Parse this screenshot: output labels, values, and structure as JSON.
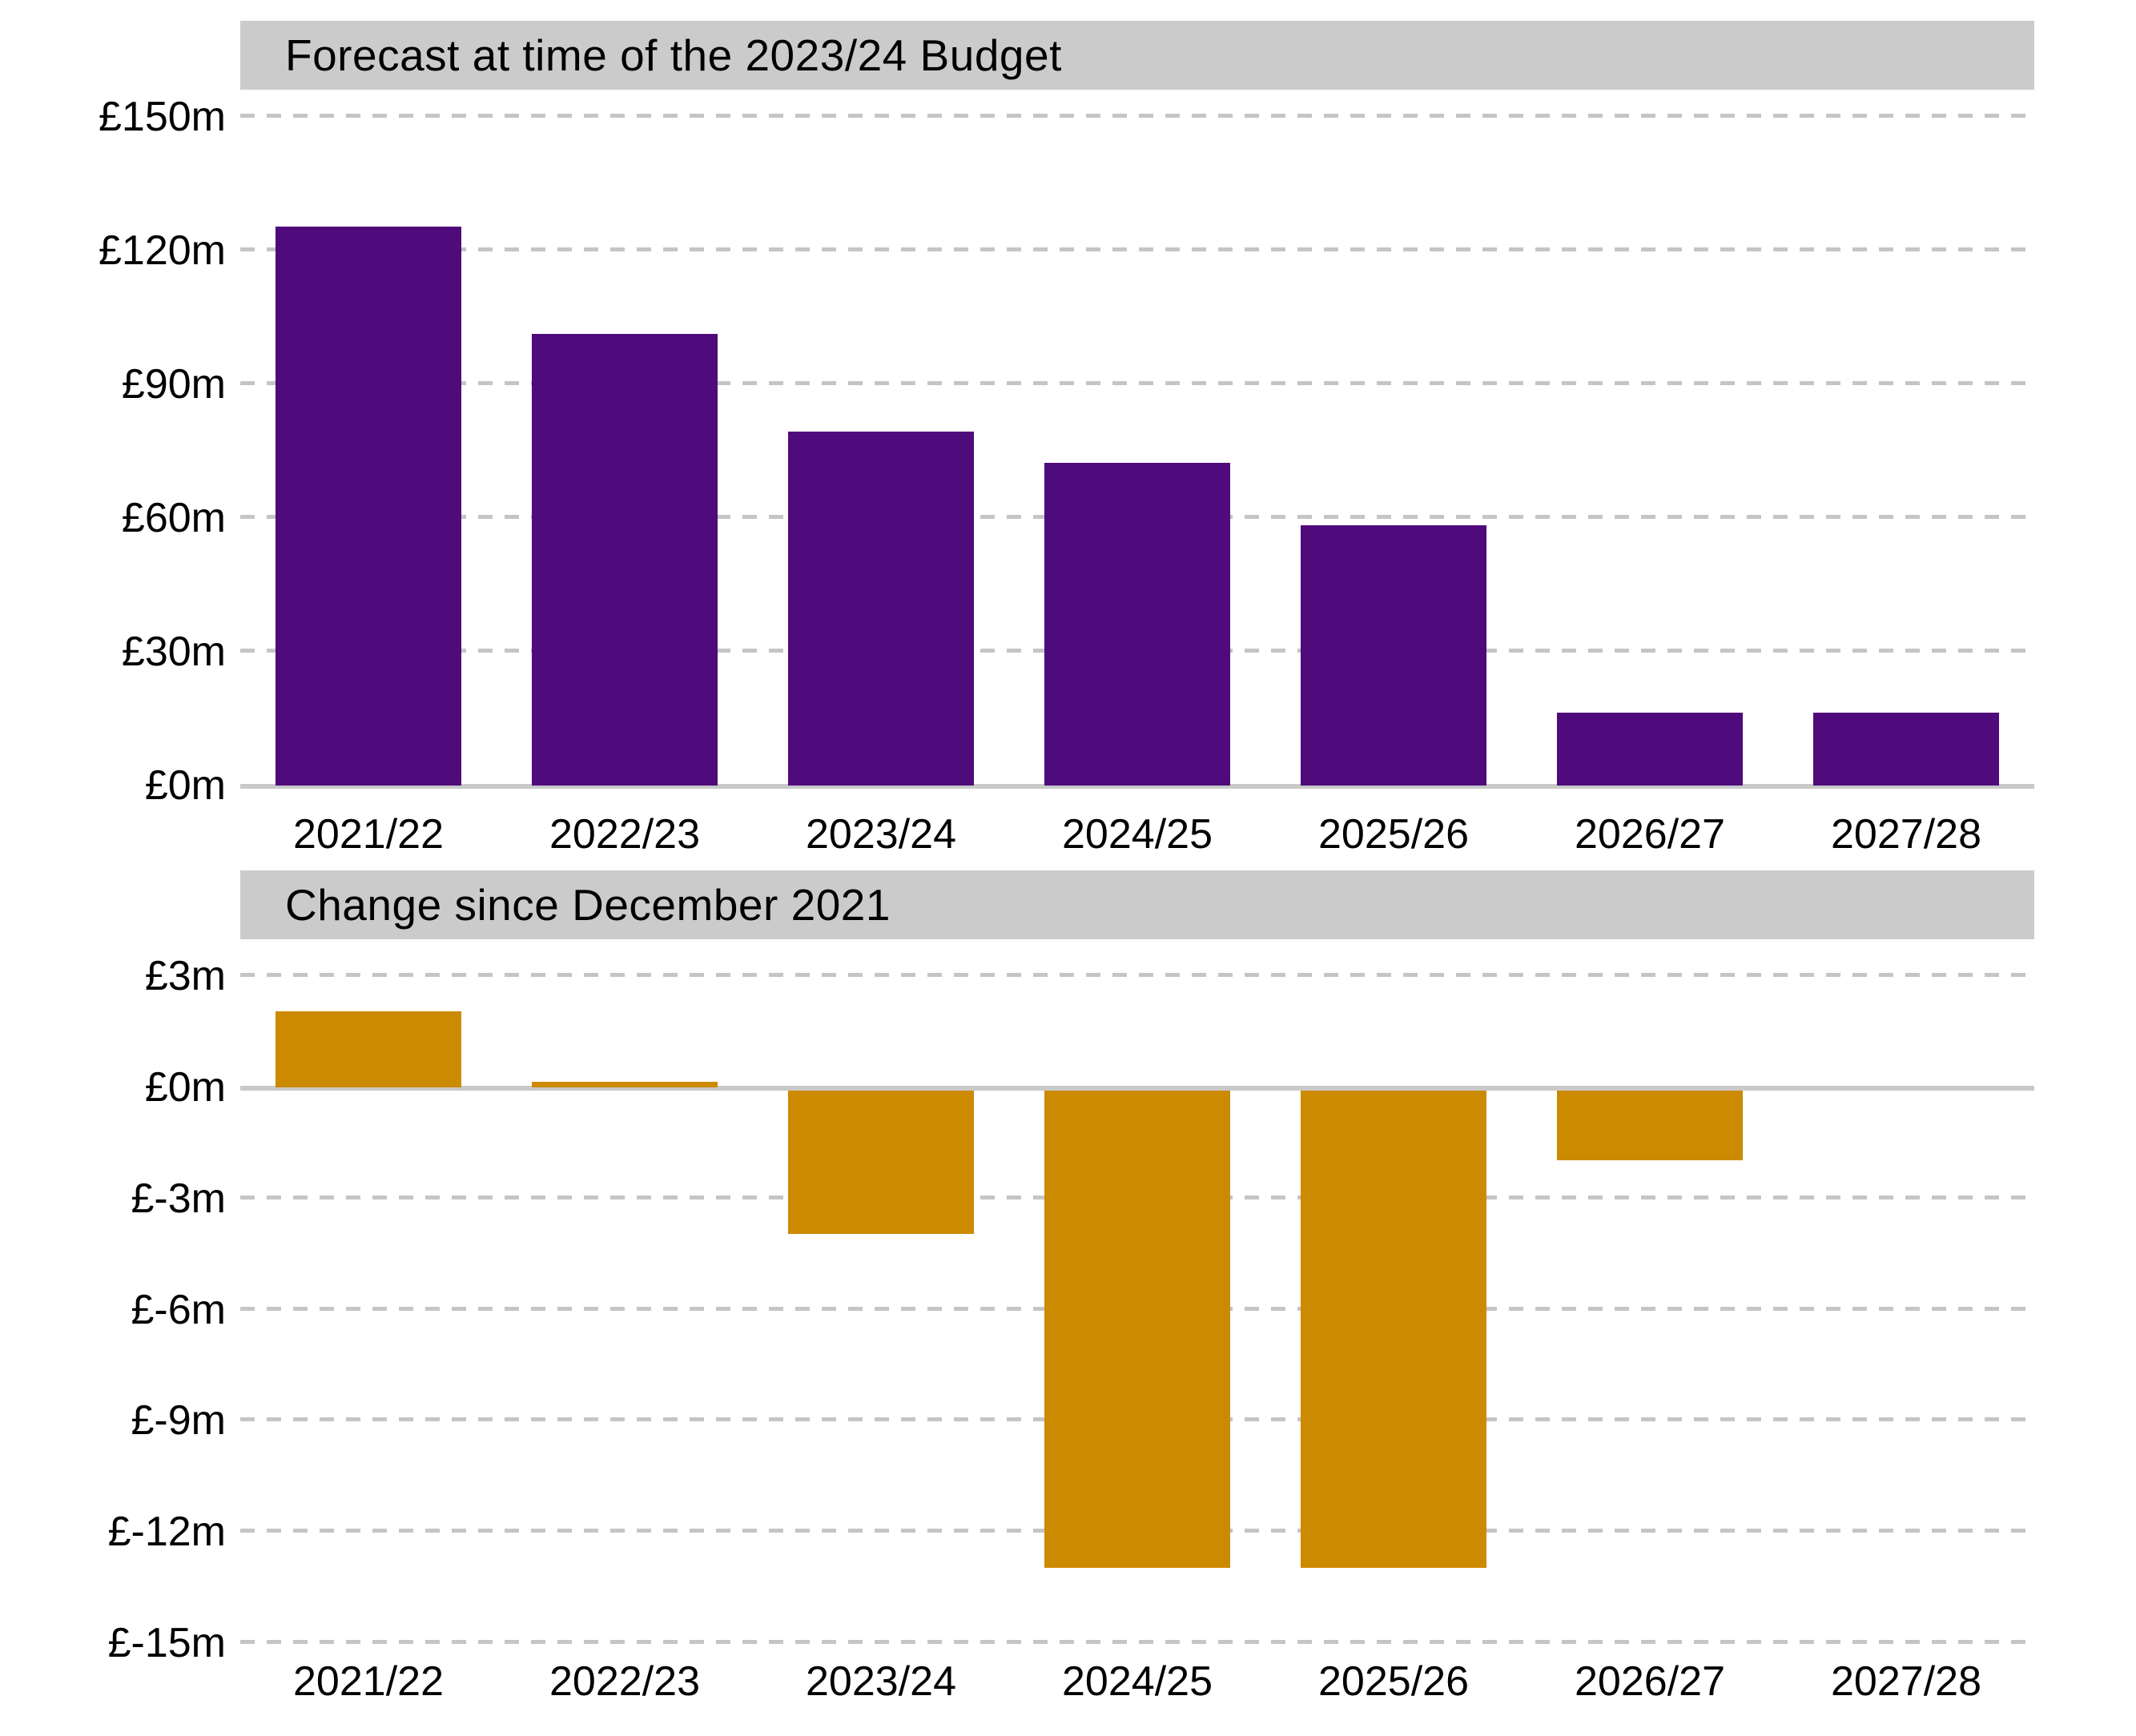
{
  "colors": {
    "background": "#ffffff",
    "title_band": "#cbcbcb",
    "gridline": "#c5c5c5",
    "axis_line": "#c9c9c9",
    "text": "#000000",
    "purple": "#4f0a7b",
    "orange": "#cc8a00"
  },
  "chart_data": [
    {
      "type": "bar",
      "title": "Forecast at time of the 2023/24 Budget",
      "categories": [
        "2021/22",
        "2022/23",
        "2023/24",
        "2024/25",
        "2025/26",
        "2026/27",
        "2027/28"
      ],
      "values": [
        125,
        101,
        79,
        72,
        58,
        16,
        16
      ],
      "unit": "£m",
      "bar_color": "#4f0a7b",
      "xlabel": "",
      "ylabel": "",
      "ylim": [
        0,
        150
      ],
      "grid": "dashed horizontal gridlines, solid baseline at zero",
      "legend": "none",
      "yticks": [
        {
          "value": 150,
          "label": "£150m"
        },
        {
          "value": 120,
          "label": "£120m"
        },
        {
          "value": 90,
          "label": "£90m"
        },
        {
          "value": 60,
          "label": "£60m"
        },
        {
          "value": 30,
          "label": "£30m"
        },
        {
          "value": 0,
          "label": "£0m"
        }
      ]
    },
    {
      "type": "bar",
      "title": "Change since December 2021",
      "categories": [
        "2021/22",
        "2022/23",
        "2023/24",
        "2024/25",
        "2025/26",
        "2026/27",
        "2027/28"
      ],
      "values": [
        2,
        0.1,
        -4,
        -13,
        -13,
        -2,
        0
      ],
      "unit": "£m",
      "bar_color": "#cc8a00",
      "xlabel": "",
      "ylabel": "",
      "ylim": [
        -15,
        3
      ],
      "grid": "dashed horizontal gridlines, solid line at zero",
      "legend": "none",
      "yticks": [
        {
          "value": 3,
          "label": "£3m"
        },
        {
          "value": 0,
          "label": "£0m"
        },
        {
          "value": -3,
          "label": "£-3m"
        },
        {
          "value": -6,
          "label": "£-6m"
        },
        {
          "value": -9,
          "label": "£-9m"
        },
        {
          "value": -12,
          "label": "£-12m"
        },
        {
          "value": -15,
          "label": "£-15m"
        }
      ]
    }
  ]
}
